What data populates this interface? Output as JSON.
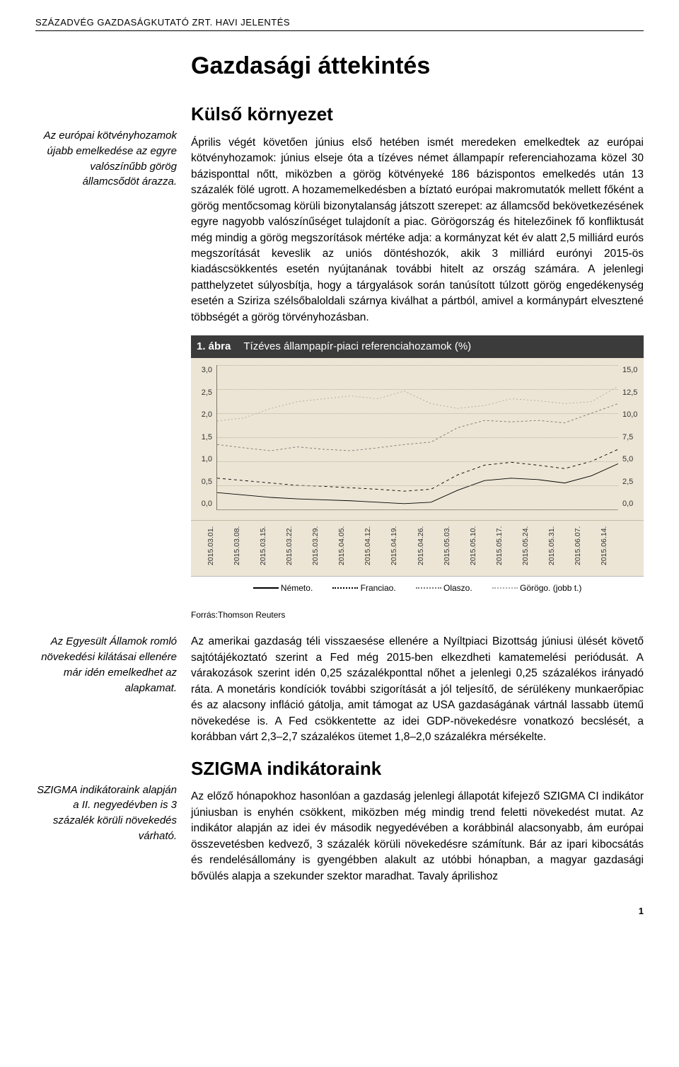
{
  "header": "SZÁZADVÉG GAZDASÁGKUTATÓ ZRT. HAVI JELENTÉS",
  "main_title": "Gazdasági áttekintés",
  "s1": {
    "side": "Az európai kötvényhozamok újabb emelkedése az egyre valószínűbb görög államcsődöt árazza.",
    "heading": "Külső környezet",
    "body": "Április végét követően június első hetében ismét meredeken emelkedtek az európai kötvényhozamok: június elseje óta a tízéves német állampapír referenciahozama közel 30 bázisponttal nőtt, miközben a görög kötvényeké 186 bázispontos emelkedés után 13 százalék fölé ugrott. A hozamemelkedésben a bíztató európai makromutatók mellett főként a görög mentőcsomag körüli bizonytalanság játszott szerepet: az államcsőd bekövetkezésének egyre nagyobb valószínűséget tulajdonít a piac. Görögország és hitelezőinek fő konfliktusát még mindig a görög megszorítások mértéke adja: a kormányzat két év alatt 2,5 milliárd eurós megszorítását keveslik az uniós döntéshozók, akik 3 milliárd eurónyi 2015-ös kiadáscsökkentés esetén nyújtanának további hitelt az ország számára. A jelenlegi patthelyzetet súlyosbítja, hogy a tárgyalások során tanúsított túlzott görög engedékenység esetén a Sziriza szélsőbaloldali szárnya kiválhat a pártból, amivel a kormánypárt elvesztené többségét a görög törvényhozásban."
  },
  "figure": {
    "num": "1. ábra",
    "title": "Tízéves állampapír-piaci referenciahozamok (%)",
    "y_left": [
      "3,0",
      "2,5",
      "2,0",
      "1,5",
      "1,0",
      "0,5",
      "0,0"
    ],
    "y_right": [
      "15,0",
      "12,5",
      "10,0",
      "7,5",
      "5,0",
      "2,5",
      "0,0"
    ],
    "y_left_lim": [
      0.0,
      3.0
    ],
    "y_right_lim": [
      0.0,
      15.0
    ],
    "background_color": "#ece5d5",
    "grid_color": "#b8b09c",
    "axis_color": "#7d7768",
    "x_labels": [
      "2015.03.01.",
      "2015.03.08.",
      "2015.03.15.",
      "2015.03.22.",
      "2015.03.29.",
      "2015.04.05.",
      "2015.04.12.",
      "2015.04.19.",
      "2015.04.26.",
      "2015.05.03.",
      "2015.05.10.",
      "2015.05.17.",
      "2015.05.24.",
      "2015.05.31.",
      "2015.06.07.",
      "2015.06.14."
    ],
    "legend": [
      "Németo.",
      "Franciao.",
      "Olaszo.",
      "Görögo. (jobb t.)"
    ],
    "series": {
      "nemeto": {
        "color": "#000000",
        "dash": "none",
        "y_axis": "left",
        "values": [
          0.35,
          0.3,
          0.25,
          0.22,
          0.2,
          0.18,
          0.15,
          0.12,
          0.15,
          0.4,
          0.6,
          0.65,
          0.62,
          0.55,
          0.7,
          0.95
        ]
      },
      "franciao": {
        "color": "#000000",
        "dash": "4,4",
        "y_axis": "left",
        "values": [
          0.65,
          0.6,
          0.55,
          0.5,
          0.48,
          0.45,
          0.42,
          0.38,
          0.42,
          0.72,
          0.92,
          0.98,
          0.92,
          0.85,
          1.0,
          1.25
        ]
      },
      "olaszo": {
        "color": "#777777",
        "dash": "3,3",
        "y_axis": "left",
        "values": [
          1.35,
          1.28,
          1.22,
          1.3,
          1.25,
          1.22,
          1.28,
          1.35,
          1.4,
          1.7,
          1.85,
          1.82,
          1.85,
          1.8,
          2.0,
          2.2
        ]
      },
      "gorogo": {
        "color": "#aaaaaa",
        "dash": "2,3",
        "y_axis": "right",
        "values": [
          9.2,
          9.5,
          10.5,
          11.2,
          11.5,
          11.8,
          11.5,
          12.3,
          11.0,
          10.5,
          10.8,
          11.5,
          11.3,
          11.0,
          11.2,
          12.8
        ]
      }
    },
    "source": "Forrás:Thomson Reuters"
  },
  "s2": {
    "side": "Az Egyesült Államok romló növekedési kilátásai ellenére már idén emelkedhet az alapkamat.",
    "body": "Az amerikai gazdaság téli visszaesése ellenére a Nyíltpiaci Bizottság júniusi ülését követő sajtótájékoztató szerint a Fed még 2015-ben elkezdheti kamatemelési periódusát. A várakozások szerint idén 0,25 százalékponttal nőhet a jelenlegi 0,25 százalékos irányadó ráta. A monetáris kondíciók további szigorítását a jól teljesítő, de sérülékeny munkaerőpiac és az alacsony infláció gátolja, amit támogat az USA gazdaságának vártnál lassabb ütemű növekedése is. A Fed csökkentette az idei GDP-növekedésre vonatkozó becslését, a korábban várt 2,3–2,7 százalékos ütemet 1,8–2,0 százalékra mérsékelte."
  },
  "s3": {
    "side": "SZIGMA indikátoraink alapján a II. negyedévben is 3 százalék körüli növekedés várható.",
    "heading": "SZIGMA indikátoraink",
    "body": "Az előző hónapokhoz hasonlóan a gazdaság jelenlegi állapotát kifejező SZIGMA CI indikátor júniusban is enyhén csökkent, miközben még mindig trend feletti növekedést mutat. Az indikátor alapján az idei év második negyedévében a korábbinál alacsonyabb, ám európai összevetésben kedvező, 3 százalék körüli növekedésre számítunk. Bár az ipari kibocsátás és rendelésállomány is gyengébben alakult az utóbbi hónapban, a magyar gazdasági bővülés alapja a szekunder szektor maradhat. Tavaly áprilishoz"
  },
  "page_number": "1"
}
